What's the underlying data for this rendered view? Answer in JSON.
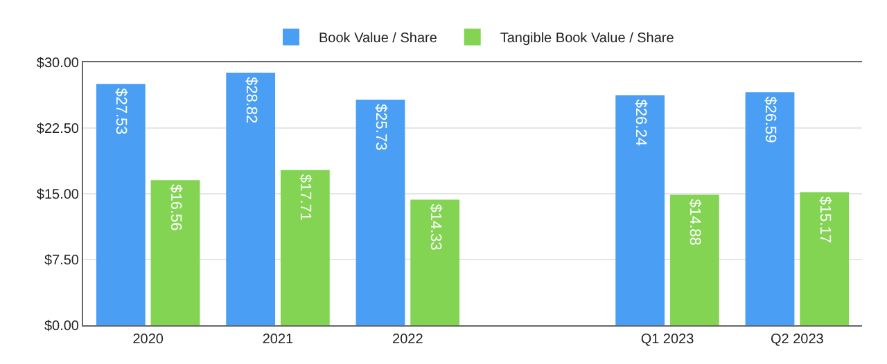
{
  "chart_data": {
    "type": "bar",
    "categories": [
      "2020",
      "2021",
      "2022",
      null,
      "Q1 2023",
      "Q2 2023"
    ],
    "series": [
      {
        "name": "Book Value / Share",
        "color": "#4a9ff5",
        "values": [
          27.53,
          28.82,
          25.73,
          null,
          26.24,
          26.59
        ],
        "value_labels": [
          "$27.53",
          "$28.82",
          "$25.73",
          null,
          "$26.24",
          "$26.59"
        ]
      },
      {
        "name": "Tangible Book Value / Share",
        "color": "#82d452",
        "values": [
          16.56,
          17.71,
          14.33,
          null,
          14.88,
          15.17
        ],
        "value_labels": [
          "$16.56",
          "$17.71",
          "$14.33",
          null,
          "$14.88",
          "$15.17"
        ]
      }
    ],
    "ylim": [
      0,
      30
    ],
    "yticks": [
      {
        "value": 0,
        "label": "$0.00"
      },
      {
        "value": 7.5,
        "label": "$7.50"
      },
      {
        "value": 15,
        "label": "$15.00"
      },
      {
        "value": 22.5,
        "label": "$22.50"
      },
      {
        "value": 30,
        "label": "$30.00"
      }
    ],
    "grid": "y",
    "legend": "top"
  }
}
